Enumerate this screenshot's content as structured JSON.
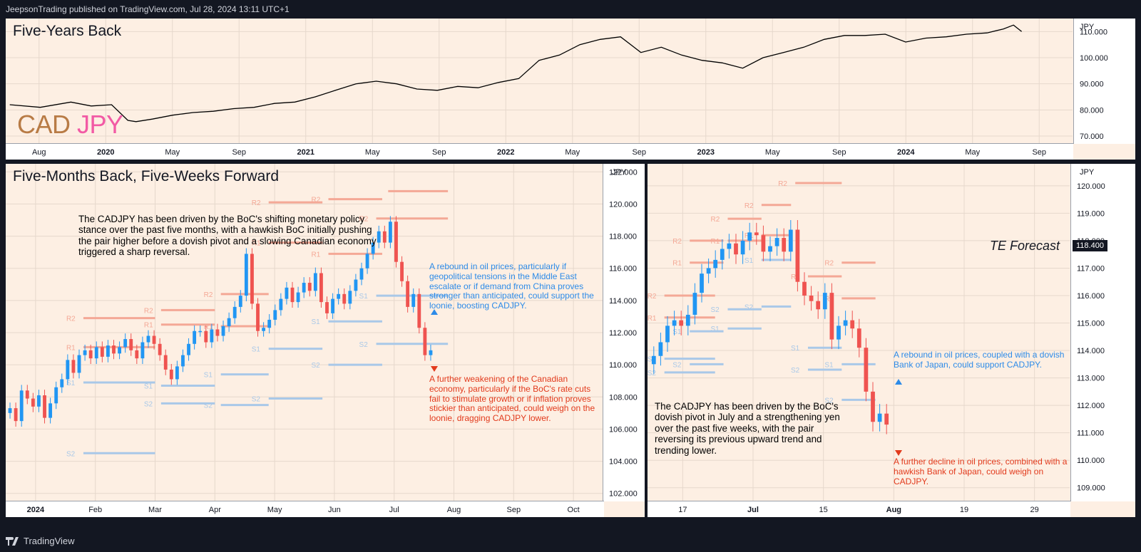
{
  "header": {
    "publisher": "JeepsonTrading published on TradingView.com, Jul 28, 2024 13:11 UTC+1"
  },
  "footer": {
    "brand": "TradingView"
  },
  "colors": {
    "background": "#131722",
    "panel": "#fdefe3",
    "up": "#2196f3",
    "down": "#ef5350",
    "resistance": "#f4a896",
    "support": "#a9c8e8"
  },
  "top_panel": {
    "title": "Five-Years Back",
    "currency_tag": "JPY",
    "logo_cad": "CAD",
    "logo_jpy": "JPY"
  },
  "left_panel": {
    "title": "Five-Months Back, Five-Weeks Forward",
    "currency_tag": "JPY",
    "note_black": "The CADJPY has been driven by the BoC's shifting monetary policy stance over the past five months, with a hawkish BoC initially pushing the pair higher before a dovish pivot and a slowing Canadian economy triggered a sharp reversal.",
    "note_blue": "A rebound in oil prices, particularly if geopolitical tensions in the Middle East escalate or if demand from China proves stronger than anticipated, could support the loonie, boosting CADJPY.",
    "note_red": "A further weakening of the Canadian economy, particularly if the BoC's rate cuts fail to stimulate growth or if inflation proves stickier than anticipated, could weigh on the loonie, dragging CADJPY lower."
  },
  "right_panel": {
    "currency_tag": "JPY",
    "forecast_label": "TE Forecast",
    "price_label": "118.400",
    "note_black": "The CADJPY has been driven by the BoC's dovish pivot in July and a strengthening yen over the past five weeks, with the pair reversing its previous upward trend and trending lower.",
    "note_blue": "A rebound in oil prices, coupled with a dovish Bank of Japan, could support CADJPY.",
    "note_red": "A further decline in oil prices, combined with a hawkish Bank of Japan, could weigh on CADJPY."
  },
  "chart_data": [
    {
      "type": "line",
      "title": "Five-Years Back",
      "series": [
        {
          "name": "CADJPY",
          "x": [
            2019.6,
            2019.75,
            2019.9,
            2020.0,
            2020.1,
            2020.18,
            2020.22,
            2020.3,
            2020.4,
            2020.5,
            2020.6,
            2020.7,
            2020.8,
            2020.9,
            2021.0,
            2021.1,
            2021.2,
            2021.3,
            2021.4,
            2021.5,
            2021.6,
            2021.7,
            2021.8,
            2021.9,
            2022.0,
            2022.1,
            2022.2,
            2022.3,
            2022.4,
            2022.5,
            2022.6,
            2022.7,
            2022.8,
            2022.9,
            2023.0,
            2023.1,
            2023.2,
            2023.3,
            2023.4,
            2023.5,
            2023.6,
            2023.7,
            2023.8,
            2023.9,
            2024.0,
            2024.1,
            2024.2,
            2024.3,
            2024.4,
            2024.48,
            2024.53,
            2024.57
          ],
          "y": [
            82,
            81,
            83,
            81.5,
            82,
            76,
            75.5,
            76.5,
            78,
            79,
            79.5,
            80.5,
            81,
            82.5,
            83,
            85,
            87.5,
            90,
            91,
            90,
            88,
            87.5,
            89,
            88.5,
            90.5,
            92,
            99,
            101,
            105,
            107,
            108,
            102,
            104,
            101,
            99,
            98,
            96,
            100,
            102,
            104,
            107,
            108.5,
            108.5,
            109,
            106,
            107.5,
            108,
            109,
            109.5,
            111,
            112.5,
            110
          ]
        }
      ],
      "x_tick_labels": [
        "Aug",
        "2020",
        "May",
        "Sep",
        "2021",
        "May",
        "Sep",
        "2022",
        "May",
        "Sep",
        "2023",
        "May",
        "Sep",
        "2024",
        "May",
        "Sep"
      ],
      "y_tick_labels": [
        "70.000",
        "80.000",
        "90.000",
        "100.000",
        "110.000"
      ],
      "ylim": [
        67,
        115
      ]
    },
    {
      "type": "candlestick",
      "title": "Five-Months Back, Five-Weeks Forward",
      "x_tick_labels": [
        "2024",
        "Feb",
        "Mar",
        "Apr",
        "May",
        "Jun",
        "Jul",
        "Aug",
        "Sep",
        "Oct"
      ],
      "y_tick_labels": [
        "102.000",
        "104.000",
        "106.000",
        "108.000",
        "110.000",
        "112.000",
        "114.000",
        "116.000",
        "118.000",
        "120.000",
        "122.000"
      ],
      "ylim": [
        101.5,
        122.5
      ],
      "closes": [
        107.3,
        106.5,
        108.4,
        107.9,
        107.4,
        108.1,
        106.7,
        107.6,
        108.6,
        109.1,
        110.3,
        109.5,
        110.6,
        110.9,
        110.4,
        111.1,
        110.5,
        111.2,
        110.7,
        111.1,
        111.6,
        110.9,
        110.4,
        111.4,
        111.8,
        111.3,
        110.6,
        109.7,
        109.1,
        109.9,
        110.6,
        111.3,
        112.1,
        112.1,
        111.4,
        112.2,
        111.8,
        112.4,
        112.9,
        113.6,
        114.3,
        116.9,
        113.8,
        112.1,
        112.3,
        112.8,
        113.4,
        114.1,
        114.8,
        113.9,
        114.5,
        115.1,
        114.6,
        115.7,
        113.9,
        113.2,
        114.1,
        114.4,
        113.8,
        114.6,
        115.3,
        116.0,
        116.9,
        117.6,
        118.3,
        117.6,
        118.9,
        116.4,
        115.2,
        113.6,
        114.4,
        112.3,
        110.6,
        110.9
      ],
      "levels": [
        {
          "label": "R2",
          "kind": "resistance",
          "value": 112.9,
          "x_start": 0.13,
          "x_end": 0.25
        },
        {
          "label": "R1",
          "kind": "resistance",
          "value": 111.1,
          "x_start": 0.13,
          "x_end": 0.25
        },
        {
          "label": "S1",
          "kind": "support",
          "value": 108.9,
          "x_start": 0.13,
          "x_end": 0.25
        },
        {
          "label": "S2",
          "kind": "support",
          "value": 104.5,
          "x_start": 0.13,
          "x_end": 0.25
        },
        {
          "label": "R2",
          "kind": "resistance",
          "value": 113.4,
          "x_start": 0.26,
          "x_end": 0.35
        },
        {
          "label": "R1",
          "kind": "resistance",
          "value": 112.5,
          "x_start": 0.26,
          "x_end": 0.35
        },
        {
          "label": "S1",
          "kind": "support",
          "value": 108.7,
          "x_start": 0.26,
          "x_end": 0.35
        },
        {
          "label": "S2",
          "kind": "support",
          "value": 107.6,
          "x_start": 0.26,
          "x_end": 0.35
        },
        {
          "label": "R2",
          "kind": "resistance",
          "value": 114.4,
          "x_start": 0.36,
          "x_end": 0.44
        },
        {
          "label": "R1",
          "kind": "resistance",
          "value": 112.4,
          "x_start": 0.36,
          "x_end": 0.44
        },
        {
          "label": "S1",
          "kind": "support",
          "value": 109.4,
          "x_start": 0.36,
          "x_end": 0.44
        },
        {
          "label": "S2",
          "kind": "support",
          "value": 107.5,
          "x_start": 0.36,
          "x_end": 0.44
        },
        {
          "label": "R2",
          "kind": "resistance",
          "value": 120.1,
          "x_start": 0.44,
          "x_end": 0.53
        },
        {
          "label": "R1",
          "kind": "resistance",
          "value": 117.6,
          "x_start": 0.44,
          "x_end": 0.53
        },
        {
          "label": "S1",
          "kind": "support",
          "value": 111.0,
          "x_start": 0.44,
          "x_end": 0.53
        },
        {
          "label": "S2",
          "kind": "support",
          "value": 107.9,
          "x_start": 0.44,
          "x_end": 0.53
        },
        {
          "label": "R2",
          "kind": "resistance",
          "value": 120.3,
          "x_start": 0.54,
          "x_end": 0.63
        },
        {
          "label": "R1",
          "kind": "resistance",
          "value": 116.9,
          "x_start": 0.54,
          "x_end": 0.63
        },
        {
          "label": "S1",
          "kind": "support",
          "value": 112.7,
          "x_start": 0.54,
          "x_end": 0.63
        },
        {
          "label": "S2",
          "kind": "support",
          "value": 110.0,
          "x_start": 0.54,
          "x_end": 0.63
        },
        {
          "label": "R2",
          "kind": "resistance",
          "value": 119.1,
          "x_start": 0.62,
          "x_end": 0.74
        },
        {
          "label": "S1",
          "kind": "support",
          "value": 114.3,
          "x_start": 0.62,
          "x_end": 0.74
        },
        {
          "label": "S2",
          "kind": "support",
          "value": 111.3,
          "x_start": 0.62,
          "x_end": 0.74
        },
        {
          "label": "",
          "kind": "resistance",
          "value": 120.8,
          "x_start": 0.64,
          "x_end": 0.74
        }
      ]
    },
    {
      "type": "candlestick",
      "title": "TE Forecast",
      "x_tick_labels": [
        "17",
        "Jul",
        "15",
        "Aug",
        "19",
        "29"
      ],
      "y_tick_labels": [
        "109.000",
        "110.000",
        "111.000",
        "112.000",
        "113.000",
        "114.000",
        "115.000",
        "116.000",
        "117.000",
        "118.000",
        "119.000",
        "120.000"
      ],
      "ylim": [
        108.5,
        120.8
      ],
      "closes": [
        113.8,
        114.3,
        114.9,
        115.1,
        114.9,
        115.3,
        116.1,
        116.8,
        117.0,
        117.3,
        117.7,
        117.9,
        117.5,
        118.0,
        118.3,
        118.2,
        117.6,
        117.8,
        118.1,
        117.6,
        118.4,
        116.5,
        116.0,
        115.8,
        115.5,
        116.1,
        114.4,
        114.9,
        115.1,
        114.8,
        114.1,
        112.5,
        111.4,
        111.7,
        111.3
      ],
      "levels": [
        {
          "label": "R2",
          "kind": "resistance",
          "value": 116.0,
          "x_start": 0.04,
          "x_end": 0.16
        },
        {
          "label": "R1",
          "kind": "resistance",
          "value": 115.2,
          "x_start": 0.04,
          "x_end": 0.16
        },
        {
          "label": "S1",
          "kind": "support",
          "value": 113.7,
          "x_start": 0.04,
          "x_end": 0.16
        },
        {
          "label": "S2",
          "kind": "support",
          "value": 113.2,
          "x_start": 0.04,
          "x_end": 0.16
        },
        {
          "label": "R2",
          "kind": "resistance",
          "value": 118.0,
          "x_start": 0.1,
          "x_end": 0.18
        },
        {
          "label": "R1",
          "kind": "resistance",
          "value": 117.2,
          "x_start": 0.1,
          "x_end": 0.18
        },
        {
          "label": "S1",
          "kind": "support",
          "value": 114.7,
          "x_start": 0.1,
          "x_end": 0.18
        },
        {
          "label": "S2",
          "kind": "support",
          "value": 113.5,
          "x_start": 0.1,
          "x_end": 0.18
        },
        {
          "label": "R2",
          "kind": "resistance",
          "value": 118.8,
          "x_start": 0.19,
          "x_end": 0.27
        },
        {
          "label": "R1",
          "kind": "resistance",
          "value": 118.0,
          "x_start": 0.19,
          "x_end": 0.27
        },
        {
          "label": "S1",
          "kind": "support",
          "value": 114.8,
          "x_start": 0.19,
          "x_end": 0.27
        },
        {
          "label": "S2",
          "kind": "support",
          "value": 115.5,
          "x_start": 0.19,
          "x_end": 0.27
        },
        {
          "label": "R2",
          "kind": "resistance",
          "value": 119.3,
          "x_start": 0.27,
          "x_end": 0.34
        },
        {
          "label": "R1",
          "kind": "resistance",
          "value": 118.2,
          "x_start": 0.27,
          "x_end": 0.34
        },
        {
          "label": "S1",
          "kind": "support",
          "value": 117.3,
          "x_start": 0.27,
          "x_end": 0.34
        },
        {
          "label": "S2",
          "kind": "support",
          "value": 115.6,
          "x_start": 0.27,
          "x_end": 0.34
        },
        {
          "label": "R2",
          "kind": "resistance",
          "value": 120.1,
          "x_start": 0.35,
          "x_end": 0.46
        },
        {
          "label": "R1",
          "kind": "resistance",
          "value": 116.7,
          "x_start": 0.38,
          "x_end": 0.46
        },
        {
          "label": "S1",
          "kind": "support",
          "value": 114.1,
          "x_start": 0.38,
          "x_end": 0.46
        },
        {
          "label": "S2",
          "kind": "support",
          "value": 113.3,
          "x_start": 0.38,
          "x_end": 0.46
        },
        {
          "label": "R2",
          "kind": "resistance",
          "value": 117.2,
          "x_start": 0.46,
          "x_end": 0.54
        },
        {
          "label": "R1",
          "kind": "resistance",
          "value": 115.9,
          "x_start": 0.46,
          "x_end": 0.54
        },
        {
          "label": "S1",
          "kind": "support",
          "value": 113.5,
          "x_start": 0.46,
          "x_end": 0.54
        },
        {
          "label": "S2",
          "kind": "support",
          "value": 112.2,
          "x_start": 0.46,
          "x_end": 0.54
        }
      ]
    }
  ]
}
